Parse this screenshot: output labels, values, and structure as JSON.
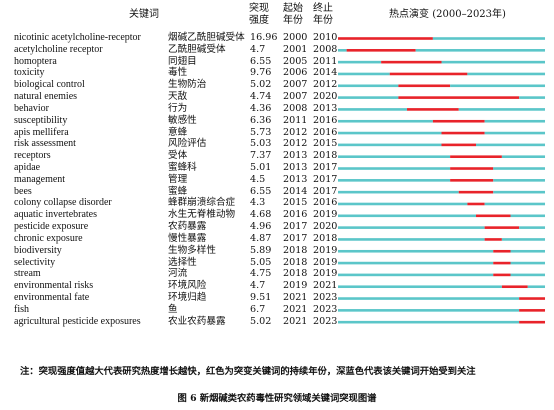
{
  "header": {
    "keyword": "关键词",
    "strength": "突现\n强度",
    "begin": "起始\n年份",
    "end": "终止\n年份",
    "timeline": "热点演变 (2000–2023年)"
  },
  "note": "注：突现强度值越大代表研究热度增长越快，红色为突变关键词的持续年份，深蓝色代表该关键词开始受到关注",
  "caption": "图 6  新烟碱类农药毒性研究领域关键词突现图谱",
  "colors": {
    "burst": "#e8232a",
    "active": "#5bc6c9",
    "pre": "#b9b9c9"
  },
  "chart_data": {
    "type": "table",
    "year_range": [
      2000,
      2023
    ],
    "columns": [
      "keyword_en",
      "keyword_zh",
      "strength",
      "begin",
      "end"
    ],
    "rows": [
      {
        "en": "nicotinic acetylcholine-receptor",
        "zh": "烟碱乙酰胆碱受体",
        "strength": "16.96",
        "begin": "2000",
        "end": "2010"
      },
      {
        "en": "acetylcholine receptor",
        "zh": "乙酰胆碱受体",
        "strength": "4.7",
        "begin": "2001",
        "end": "2008"
      },
      {
        "en": "homoptera",
        "zh": "同翅目",
        "strength": "6.55",
        "begin": "2005",
        "end": "2011"
      },
      {
        "en": "toxicity",
        "zh": "毒性",
        "strength": "9.76",
        "begin": "2006",
        "end": "2014"
      },
      {
        "en": "biological control",
        "zh": "生物防治",
        "strength": "5.02",
        "begin": "2007",
        "end": "2012"
      },
      {
        "en": "natural enemies",
        "zh": "天敌",
        "strength": "4.74",
        "begin": "2007",
        "end": "2020"
      },
      {
        "en": "behavior",
        "zh": "行为",
        "strength": "4.36",
        "begin": "2008",
        "end": "2013"
      },
      {
        "en": "susceptibility",
        "zh": "敏感性",
        "strength": "6.36",
        "begin": "2011",
        "end": "2016"
      },
      {
        "en": "apis mellifera",
        "zh": "意蜂",
        "strength": "5.73",
        "begin": "2012",
        "end": "2016"
      },
      {
        "en": "risk assessment",
        "zh": "风险评估",
        "strength": "5.03",
        "begin": "2012",
        "end": "2015"
      },
      {
        "en": "receptors",
        "zh": "受体",
        "strength": "7.37",
        "begin": "2013",
        "end": "2018"
      },
      {
        "en": "apidae",
        "zh": "蜜蜂科",
        "strength": "5.01",
        "begin": "2013",
        "end": "2017"
      },
      {
        "en": "management",
        "zh": "管理",
        "strength": "4.5",
        "begin": "2013",
        "end": "2017"
      },
      {
        "en": "bees",
        "zh": "蜜蜂",
        "strength": "6.55",
        "begin": "2014",
        "end": "2017"
      },
      {
        "en": "colony collapse disorder",
        "zh": "蜂群崩溃综合症",
        "strength": "4.3",
        "begin": "2015",
        "end": "2016"
      },
      {
        "en": "aquatic invertebrates",
        "zh": "水生无脊椎动物",
        "strength": "4.68",
        "begin": "2016",
        "end": "2019"
      },
      {
        "en": "pesticide exposure",
        "zh": "农药暴露",
        "strength": "4.96",
        "begin": "2017",
        "end": "2020"
      },
      {
        "en": "chronic exposure",
        "zh": "慢性暴露",
        "strength": "4.87",
        "begin": "2017",
        "end": "2018"
      },
      {
        "en": "biodiversity",
        "zh": "生物多样性",
        "strength": "5.89",
        "begin": "2018",
        "end": "2019"
      },
      {
        "en": "selectivity",
        "zh": "选择性",
        "strength": "5.05",
        "begin": "2018",
        "end": "2019"
      },
      {
        "en": "stream",
        "zh": "河流",
        "strength": "4.75",
        "begin": "2018",
        "end": "2019"
      },
      {
        "en": "environmental risks",
        "zh": "环境风险",
        "strength": "4.7",
        "begin": "2019",
        "end": "2021"
      },
      {
        "en": "environmental fate",
        "zh": "环境归趋",
        "strength": "9.51",
        "begin": "2021",
        "end": "2023"
      },
      {
        "en": "fish",
        "zh": "鱼",
        "strength": "6.7",
        "begin": "2021",
        "end": "2023"
      },
      {
        "en": "agricultural pesticide exposures",
        "zh": "农业农药暴露",
        "strength": "5.02",
        "begin": "2021",
        "end": "2023"
      }
    ],
    "active_from": [
      2000,
      2000,
      2000,
      2000,
      2000,
      2000,
      2000,
      2000,
      2000,
      2000,
      2000,
      2000,
      2000,
      2000,
      2000,
      2000,
      2000,
      2000,
      2000,
      2000,
      2000,
      2000,
      2000,
      2000,
      2000
    ]
  }
}
